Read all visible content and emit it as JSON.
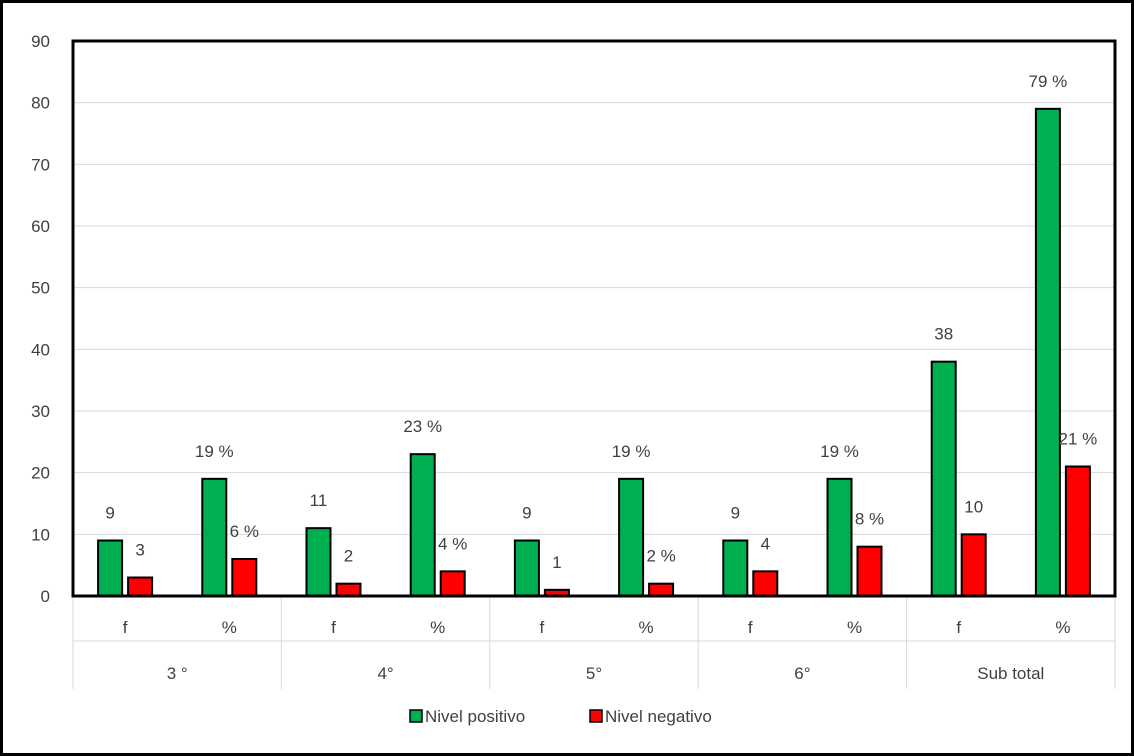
{
  "chart_data": {
    "type": "bar",
    "groups": [
      {
        "label": "3 °",
        "subcategories": [
          "f",
          "%"
        ]
      },
      {
        "label": "4°",
        "subcategories": [
          "f",
          "%"
        ]
      },
      {
        "label": "5°",
        "subcategories": [
          "f",
          "%"
        ]
      },
      {
        "label": "6°",
        "subcategories": [
          "f",
          "%"
        ]
      },
      {
        "label": "Sub total",
        "subcategories": [
          "f",
          "%"
        ]
      }
    ],
    "categories": [
      "f",
      "%",
      "f",
      "%",
      "f",
      "%",
      "f",
      "%",
      "f",
      "%"
    ],
    "series": [
      {
        "name": "Nivel positivo",
        "color": "#00b050",
        "values": [
          9,
          19,
          11,
          23,
          9,
          19,
          9,
          19,
          38,
          79
        ],
        "labels": [
          "9",
          "19 %",
          "11",
          "23 %",
          "9",
          "19 %",
          "9",
          "19 %",
          "38",
          "79 %"
        ]
      },
      {
        "name": "Nivel negativo",
        "color": "#ff0000",
        "values": [
          3,
          6,
          2,
          4,
          1,
          2,
          4,
          8,
          10,
          21
        ],
        "labels": [
          "3",
          "6 %",
          "2",
          "4 %",
          "1",
          "2 %",
          "4",
          "8 %",
          "10",
          "21 %"
        ]
      }
    ],
    "yticks": [
      0,
      10,
      20,
      30,
      40,
      50,
      60,
      70,
      80,
      90
    ],
    "ylim": [
      0,
      90
    ],
    "title": "",
    "xlabel": "",
    "ylabel": "",
    "grid": true,
    "legend": "bottom"
  }
}
